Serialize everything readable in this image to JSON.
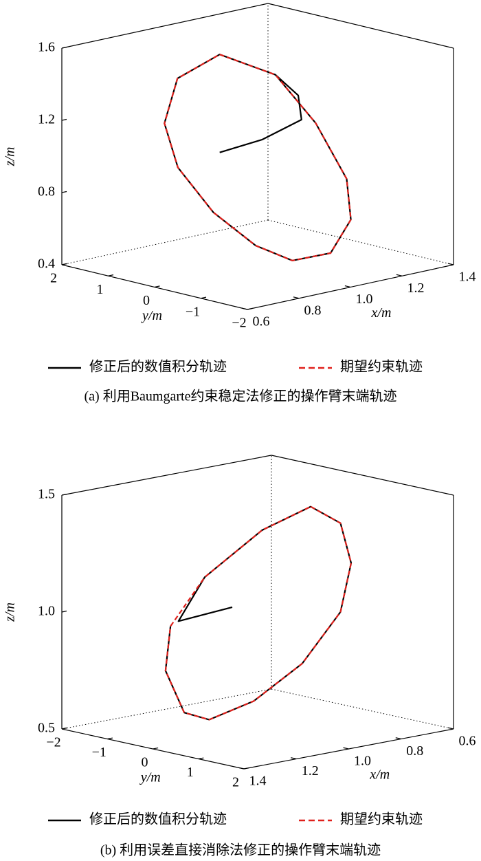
{
  "chart_data": [
    {
      "type": "line3d",
      "caption": "(a) 利用Baumgarte约束稳定法修正的操作臂末端轨迹",
      "xlabel": "x/m",
      "ylabel": "y/m",
      "zlabel": "z/m",
      "xlim": [
        0.6,
        1.4
      ],
      "ylim": [
        -2,
        2
      ],
      "zlim": [
        0.4,
        1.6
      ],
      "xticks": [
        0.6,
        0.8,
        {
          "value": 1,
          "label": "1.0"
        },
        1.2,
        1.4
      ],
      "yticks": [
        {
          "value": -2,
          "label": "−2"
        },
        {
          "value": -1,
          "label": "−1"
        },
        0,
        1,
        2
      ],
      "zticks": [
        0.4,
        0.8,
        1.2,
        1.6
      ],
      "series": [
        {
          "name": "修正后的数值积分轨迹",
          "color": "#000000",
          "style": "solid",
          "x": [
            0.91,
            1.0,
            1.08,
            1.08,
            1.04,
            1.11,
            1.16,
            1.16,
            1.11,
            1.03,
            0.96,
            0.88,
            0.82,
            0.8,
            0.84,
            0.93,
            1.04
          ],
          "y": [
            0.32,
            -0.1,
            -0.5,
            -0.43,
            -0.16,
            -0.64,
            -1.03,
            -1.12,
            -0.96,
            -0.58,
            -0.18,
            0.29,
            0.72,
            0.9,
            0.84,
            0.43,
            -0.16
          ],
          "z": [
            1.03,
            1.1,
            1.21,
            1.34,
            1.45,
            1.19,
            0.89,
            0.67,
            0.49,
            0.45,
            0.53,
            0.71,
            0.95,
            1.19,
            1.43,
            1.56,
            1.45
          ]
        },
        {
          "name": "期望约束轨迹",
          "color": "#e0201b",
          "style": "dashed",
          "x": [
            0.93,
            1.04,
            1.11,
            1.16,
            1.16,
            1.11,
            1.03,
            0.96,
            0.88,
            0.82,
            0.8,
            0.84,
            0.93
          ],
          "y": [
            0.43,
            -0.16,
            -0.64,
            -1.03,
            -1.12,
            -0.96,
            -0.58,
            -0.18,
            0.29,
            0.72,
            0.9,
            0.84,
            0.43
          ],
          "z": [
            1.56,
            1.45,
            1.19,
            0.89,
            0.67,
            0.49,
            0.45,
            0.53,
            0.71,
            0.95,
            1.19,
            1.43,
            1.56
          ]
        }
      ]
    },
    {
      "type": "line3d",
      "caption": "(b) 利用误差直接消除法修正的操作臂末端轨迹",
      "xlabel": "x/m",
      "ylabel": "y/m",
      "zlabel": "z/m",
      "xlim": [
        0.6,
        1.4
      ],
      "ylim": [
        -2,
        2
      ],
      "zlim": [
        0.5,
        1.5
      ],
      "xticks": [
        0.6,
        0.8,
        {
          "value": 1,
          "label": "1.0"
        },
        1.2,
        1.4
      ],
      "yticks": [
        {
          "value": -2,
          "label": "−2"
        },
        {
          "value": -1,
          "label": "−1"
        },
        0,
        1,
        2
      ],
      "zticks": [
        0.5,
        {
          "value": 1,
          "label": "1.0"
        },
        1.5
      ],
      "series": [
        {
          "name": "修正后的数值积分轨迹",
          "color": "#000000",
          "style": "solid",
          "x": [
            1.05,
            1.16,
            1.11,
            0.99,
            0.89,
            0.83,
            0.81,
            0.83,
            0.91,
            1.01,
            1.1,
            1.15,
            1.19,
            1.18
          ],
          "y": [
            -0.27,
            -0.82,
            -0.53,
            0.04,
            0.53,
            0.84,
            0.96,
            0.84,
            0.46,
            -0.03,
            -0.49,
            -0.75,
            -0.93,
            -0.88
          ],
          "z": [
            1.02,
            0.96,
            1.15,
            1.35,
            1.45,
            1.38,
            1.21,
            1.0,
            0.78,
            0.62,
            0.54,
            0.57,
            0.75,
            0.94
          ]
        },
        {
          "name": "期望约束轨迹",
          "color": "#e0201b",
          "style": "dashed",
          "x": [
            0.89,
            0.83,
            0.81,
            0.83,
            0.91,
            1.01,
            1.1,
            1.15,
            1.19,
            1.18,
            1.11,
            0.99,
            0.89
          ],
          "y": [
            0.53,
            0.84,
            0.96,
            0.84,
            0.46,
            -0.03,
            -0.49,
            -0.75,
            -0.93,
            -0.88,
            -0.53,
            0.04,
            0.53
          ],
          "z": [
            1.45,
            1.38,
            1.21,
            1.0,
            0.78,
            0.62,
            0.54,
            0.57,
            0.75,
            0.94,
            1.15,
            1.35,
            1.45
          ]
        }
      ]
    }
  ]
}
